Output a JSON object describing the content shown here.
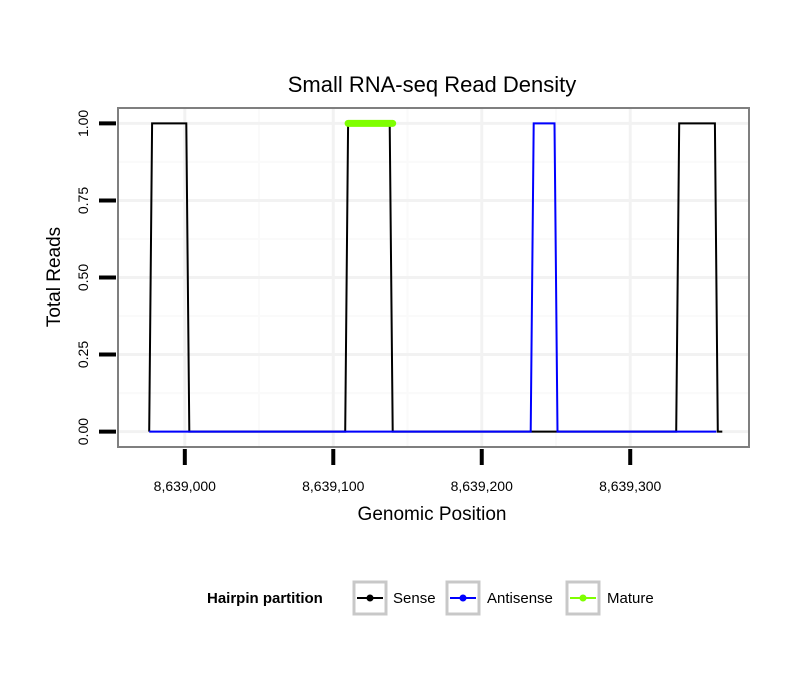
{
  "chart_data": {
    "type": "line",
    "title": "Small RNA-seq Read Density",
    "xlabel": "Genomic Position",
    "ylabel": "Total Reads",
    "xlim": [
      8638955,
      8639380
    ],
    "ylim": [
      -0.05,
      1.05
    ],
    "x_ticks": [
      8639000,
      8639100,
      8639200,
      8639300
    ],
    "x_tick_labels": [
      "8,639,000",
      "8,639,100",
      "8,639,200",
      "8,639,300"
    ],
    "y_ticks": [
      0,
      0.25,
      0.5,
      0.75,
      1.0
    ],
    "y_tick_labels": [
      "0.00",
      "0.25",
      "0.50",
      "0.75",
      "1.00"
    ],
    "grid": true,
    "legend_position": "bottom",
    "legend_title": "Hairpin partition",
    "series": [
      {
        "name": "Sense",
        "color": "#000000",
        "x": [
          8638976,
          8638978,
          8639001,
          8639003,
          8639108,
          8639110,
          8639138,
          8639140,
          8639331,
          8639333,
          8639357,
          8639359,
          8639362
        ],
        "y": [
          0,
          1,
          1,
          0,
          0,
          1,
          1,
          0,
          0,
          1,
          1,
          0,
          0
        ]
      },
      {
        "name": "Antisense",
        "color": "#0000ff",
        "x": [
          8638976,
          8639233,
          8639235,
          8639249,
          8639251,
          8639358
        ],
        "y": [
          0,
          0,
          1,
          1,
          0,
          0
        ]
      },
      {
        "name": "Mature",
        "color": "#7fff00",
        "x": [
          8639110,
          8639140
        ],
        "y": [
          1,
          1
        ]
      }
    ]
  }
}
